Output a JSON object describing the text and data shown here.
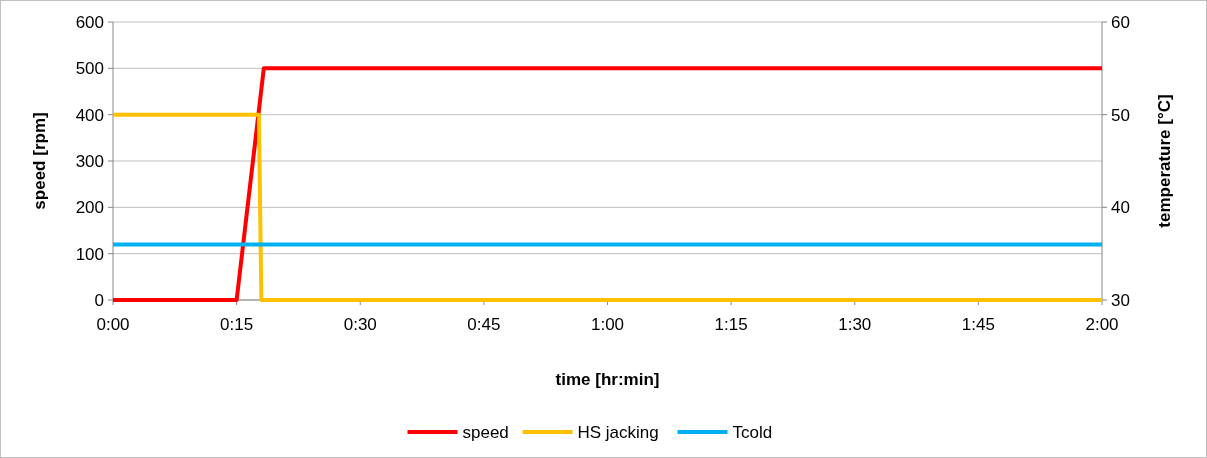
{
  "chart_data": {
    "type": "line",
    "xlabel": "time [hr:min]",
    "ylabel": "speed [rpm]",
    "y2label": "temperature [°C]",
    "xlim": [
      0,
      2
    ],
    "xticks": [
      {
        "value": 0,
        "label": "0:00"
      },
      {
        "value": 0.25,
        "label": "0:15"
      },
      {
        "value": 0.5,
        "label": "0:30"
      },
      {
        "value": 0.75,
        "label": "0:45"
      },
      {
        "value": 1,
        "label": "1:00"
      },
      {
        "value": 1.25,
        "label": "1:15"
      },
      {
        "value": 1.5,
        "label": "1:30"
      },
      {
        "value": 1.75,
        "label": "1:45"
      },
      {
        "value": 2,
        "label": "2:00"
      }
    ],
    "ylim": [
      0,
      600
    ],
    "yticks": [
      0,
      100,
      200,
      300,
      400,
      500,
      600
    ],
    "y2lim": [
      30,
      60
    ],
    "y2ticks": [
      30,
      40,
      50,
      60
    ],
    "grid": "y",
    "legend": "bottom",
    "line_style": "solid",
    "series": [
      {
        "name": "speed",
        "color": "#ff0000",
        "x": [
          0,
          0.25,
          0.305,
          2
        ],
        "values": [
          0,
          0,
          500,
          500
        ]
      },
      {
        "name": "HS jacking",
        "color": "#ffc000",
        "x": [
          0,
          0.295,
          0.3,
          2
        ],
        "values": [
          400,
          400,
          0,
          0
        ]
      },
      {
        "name": "Tcold",
        "color": "#00b0f0",
        "axis": "y2",
        "x": [
          0,
          2
        ],
        "values": [
          36,
          36
        ]
      }
    ]
  }
}
